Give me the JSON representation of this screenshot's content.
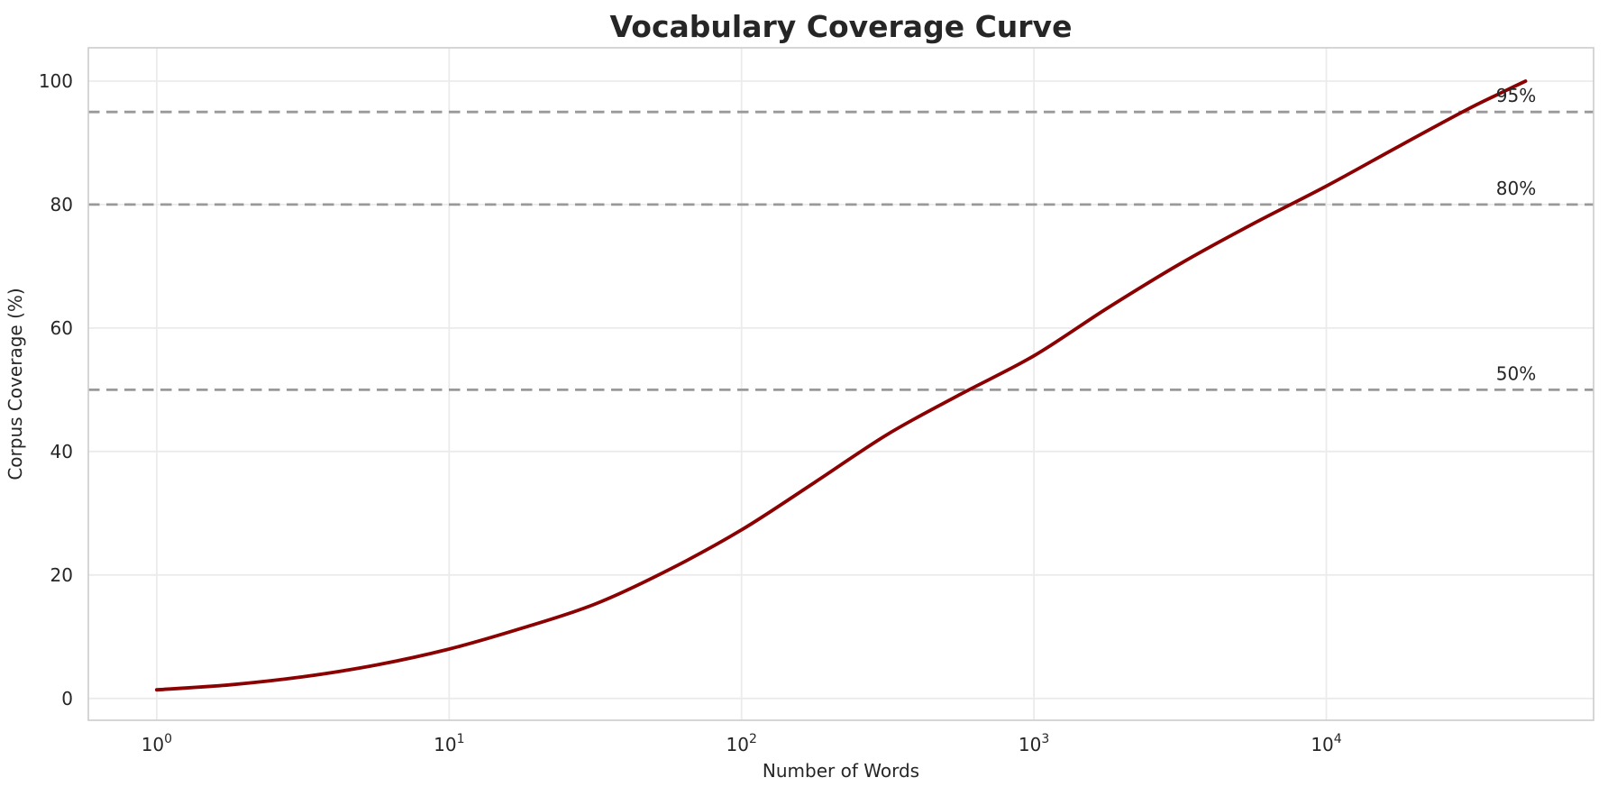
{
  "chart_data": {
    "type": "line",
    "title": "Vocabulary Coverage Curve",
    "xlabel": "Number of Words",
    "ylabel": "Corpus Coverage (%)",
    "x_scale": "log",
    "grid": true,
    "legend": "none",
    "xlim_log10": [
      -0.234,
      4.914
    ],
    "ylim": [
      -3.54,
      105.4
    ],
    "x_ticks": [
      {
        "value": 1,
        "base": "10",
        "exp": "0"
      },
      {
        "value": 10,
        "base": "10",
        "exp": "1"
      },
      {
        "value": 100,
        "base": "10",
        "exp": "2"
      },
      {
        "value": 1000,
        "base": "10",
        "exp": "3"
      },
      {
        "value": 10000,
        "base": "10",
        "exp": "4"
      }
    ],
    "y_ticks": [
      0,
      20,
      40,
      60,
      80,
      100
    ],
    "series": [
      {
        "name": "vocabulary-coverage",
        "color": "#8B0000",
        "line_width": 3.8,
        "points": [
          [
            1,
            1.4
          ],
          [
            1.78,
            2.2
          ],
          [
            3.16,
            3.5
          ],
          [
            5.62,
            5.4
          ],
          [
            10,
            8.0
          ],
          [
            17.8,
            11.4
          ],
          [
            31.6,
            15.3
          ],
          [
            56.2,
            20.8
          ],
          [
            100,
            27.3
          ],
          [
            178,
            35.0
          ],
          [
            316,
            42.8
          ],
          [
            562,
            49.3
          ],
          [
            1000,
            55.5
          ],
          [
            1780,
            63.2
          ],
          [
            3160,
            70.4
          ],
          [
            5620,
            76.9
          ],
          [
            10000,
            83.0
          ],
          [
            17800,
            89.5
          ],
          [
            30000,
            95.3
          ],
          [
            40000,
            98.2
          ],
          [
            48000,
            100.0
          ]
        ]
      }
    ],
    "thresholds": [
      {
        "value": 50,
        "label": "50%"
      },
      {
        "value": 80,
        "label": "80%"
      },
      {
        "value": 95,
        "label": "95%"
      }
    ],
    "colors": {
      "grid": "#EBEBEB",
      "spine": "#CCCCCC",
      "threshold": "#999999",
      "text": "#262626"
    }
  }
}
